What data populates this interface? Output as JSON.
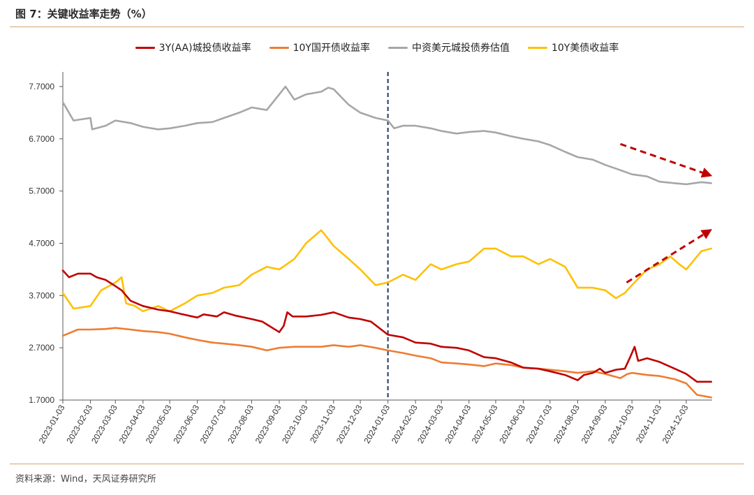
{
  "figure": {
    "title": "图 7：关键收益率走势（%）",
    "source": "资料来源：Wind，天风证券研究所"
  },
  "chart_data": {
    "type": "line",
    "title": "关键收益率走势（%）",
    "xlabel": "",
    "ylabel": "",
    "ylim": [
      1.7,
      7.98
    ],
    "y_ticks": [
      "7.7000",
      "6.7000",
      "5.7000",
      "4.7000",
      "3.7000",
      "2.7000",
      "1.7000"
    ],
    "x_ticks": [
      "2023-01-03",
      "2023-02-03",
      "2023-03-03",
      "2023-04-03",
      "2023-05-03",
      "2023-06-03",
      "2023-07-03",
      "2023-08-03",
      "2023-09-03",
      "2023-10-03",
      "2023-11-03",
      "2023-12-03",
      "2024-01-03",
      "2024-02-03",
      "2024-03-03",
      "2024-04-03",
      "2024-05-03",
      "2024-06-03",
      "2024-07-03",
      "2024-08-03",
      "2024-09-03",
      "2024-10-03",
      "2024-11-03",
      "2024-12-03"
    ],
    "vline_at": "2024-01-03",
    "annotations": [
      {
        "label": "down-trend-arrow",
        "from": [
          "2024-09-20",
          6.6
        ],
        "to": [
          "2024-12-30",
          6.0
        ]
      },
      {
        "label": "up-trend-arrow",
        "from": [
          "2024-09-27",
          3.95
        ],
        "to": [
          "2024-12-30",
          4.95
        ]
      }
    ],
    "series": [
      {
        "name": "3Y(AA)城投债收益率",
        "color": "#c00000",
        "points": [
          [
            "2023-01-03",
            4.18
          ],
          [
            "2023-01-10",
            4.05
          ],
          [
            "2023-01-20",
            4.12
          ],
          [
            "2023-02-03",
            4.12
          ],
          [
            "2023-02-10",
            4.05
          ],
          [
            "2023-02-20",
            4.0
          ],
          [
            "2023-03-03",
            3.88
          ],
          [
            "2023-03-10",
            3.8
          ],
          [
            "2023-03-20",
            3.6
          ],
          [
            "2023-04-03",
            3.5
          ],
          [
            "2023-04-20",
            3.43
          ],
          [
            "2023-05-03",
            3.4
          ],
          [
            "2023-05-15",
            3.35
          ],
          [
            "2023-06-03",
            3.28
          ],
          [
            "2023-06-10",
            3.34
          ],
          [
            "2023-06-25",
            3.3
          ],
          [
            "2023-07-03",
            3.38
          ],
          [
            "2023-07-15",
            3.32
          ],
          [
            "2023-08-03",
            3.25
          ],
          [
            "2023-08-15",
            3.2
          ],
          [
            "2023-09-03",
            3.0
          ],
          [
            "2023-09-08",
            3.12
          ],
          [
            "2023-09-12",
            3.38
          ],
          [
            "2023-09-18",
            3.3
          ],
          [
            "2023-10-03",
            3.3
          ],
          [
            "2023-10-20",
            3.33
          ],
          [
            "2023-11-03",
            3.38
          ],
          [
            "2023-11-20",
            3.28
          ],
          [
            "2023-12-03",
            3.25
          ],
          [
            "2023-12-15",
            3.2
          ],
          [
            "2024-01-03",
            2.95
          ],
          [
            "2024-01-20",
            2.9
          ],
          [
            "2024-02-03",
            2.8
          ],
          [
            "2024-02-20",
            2.78
          ],
          [
            "2024-03-03",
            2.72
          ],
          [
            "2024-03-20",
            2.7
          ],
          [
            "2024-04-03",
            2.65
          ],
          [
            "2024-04-20",
            2.52
          ],
          [
            "2024-05-03",
            2.5
          ],
          [
            "2024-05-20",
            2.42
          ],
          [
            "2024-06-03",
            2.32
          ],
          [
            "2024-06-20",
            2.3
          ],
          [
            "2024-07-03",
            2.25
          ],
          [
            "2024-07-20",
            2.18
          ],
          [
            "2024-08-03",
            2.08
          ],
          [
            "2024-08-10",
            2.18
          ],
          [
            "2024-08-20",
            2.22
          ],
          [
            "2024-08-28",
            2.3
          ],
          [
            "2024-09-03",
            2.22
          ],
          [
            "2024-09-15",
            2.28
          ],
          [
            "2024-09-25",
            2.3
          ],
          [
            "2024-10-01",
            2.52
          ],
          [
            "2024-10-06",
            2.72
          ],
          [
            "2024-10-10",
            2.45
          ],
          [
            "2024-10-20",
            2.5
          ],
          [
            "2024-11-03",
            2.43
          ],
          [
            "2024-11-20",
            2.3
          ],
          [
            "2024-12-03",
            2.2
          ],
          [
            "2024-12-15",
            2.05
          ],
          [
            "2024-12-31",
            2.05
          ]
        ]
      },
      {
        "name": "10Y国开债收益率",
        "color": "#ed7d31",
        "points": [
          [
            "2023-01-03",
            2.93
          ],
          [
            "2023-01-20",
            3.05
          ],
          [
            "2023-02-03",
            3.05
          ],
          [
            "2023-02-20",
            3.06
          ],
          [
            "2023-03-03",
            3.08
          ],
          [
            "2023-03-20",
            3.05
          ],
          [
            "2023-04-03",
            3.02
          ],
          [
            "2023-04-20",
            3.0
          ],
          [
            "2023-05-03",
            2.97
          ],
          [
            "2023-05-20",
            2.9
          ],
          [
            "2023-06-03",
            2.85
          ],
          [
            "2023-06-20",
            2.8
          ],
          [
            "2023-07-03",
            2.78
          ],
          [
            "2023-07-20",
            2.75
          ],
          [
            "2023-08-03",
            2.72
          ],
          [
            "2023-08-20",
            2.65
          ],
          [
            "2023-09-03",
            2.7
          ],
          [
            "2023-09-20",
            2.72
          ],
          [
            "2023-10-03",
            2.72
          ],
          [
            "2023-10-20",
            2.72
          ],
          [
            "2023-11-03",
            2.75
          ],
          [
            "2023-11-20",
            2.72
          ],
          [
            "2023-12-03",
            2.75
          ],
          [
            "2023-12-20",
            2.7
          ],
          [
            "2024-01-03",
            2.65
          ],
          [
            "2024-01-20",
            2.6
          ],
          [
            "2024-02-03",
            2.55
          ],
          [
            "2024-02-20",
            2.5
          ],
          [
            "2024-03-03",
            2.42
          ],
          [
            "2024-03-20",
            2.4
          ],
          [
            "2024-04-03",
            2.38
          ],
          [
            "2024-04-20",
            2.35
          ],
          [
            "2024-05-03",
            2.4
          ],
          [
            "2024-05-20",
            2.37
          ],
          [
            "2024-06-03",
            2.32
          ],
          [
            "2024-06-20",
            2.3
          ],
          [
            "2024-07-03",
            2.28
          ],
          [
            "2024-07-20",
            2.25
          ],
          [
            "2024-08-03",
            2.22
          ],
          [
            "2024-08-20",
            2.25
          ],
          [
            "2024-09-03",
            2.2
          ],
          [
            "2024-09-20",
            2.12
          ],
          [
            "2024-09-28",
            2.2
          ],
          [
            "2024-10-03",
            2.22
          ],
          [
            "2024-10-20",
            2.18
          ],
          [
            "2024-11-03",
            2.16
          ],
          [
            "2024-11-20",
            2.1
          ],
          [
            "2024-12-03",
            2.02
          ],
          [
            "2024-12-15",
            1.8
          ],
          [
            "2024-12-31",
            1.75
          ]
        ]
      },
      {
        "name": "中资美元城投债券估值",
        "color": "#a6a6a6",
        "points": [
          [
            "2023-01-03",
            7.4
          ],
          [
            "2023-01-15",
            7.05
          ],
          [
            "2023-02-03",
            7.1
          ],
          [
            "2023-02-05",
            6.88
          ],
          [
            "2023-02-20",
            6.95
          ],
          [
            "2023-03-03",
            7.05
          ],
          [
            "2023-03-20",
            7.0
          ],
          [
            "2023-04-03",
            6.93
          ],
          [
            "2023-04-20",
            6.88
          ],
          [
            "2023-05-03",
            6.9
          ],
          [
            "2023-05-20",
            6.95
          ],
          [
            "2023-06-03",
            7.0
          ],
          [
            "2023-06-20",
            7.02
          ],
          [
            "2023-07-03",
            7.1
          ],
          [
            "2023-07-20",
            7.2
          ],
          [
            "2023-08-03",
            7.3
          ],
          [
            "2023-08-20",
            7.25
          ],
          [
            "2023-09-03",
            7.55
          ],
          [
            "2023-09-10",
            7.7
          ],
          [
            "2023-09-20",
            7.45
          ],
          [
            "2023-10-03",
            7.55
          ],
          [
            "2023-10-20",
            7.6
          ],
          [
            "2023-10-28",
            7.68
          ],
          [
            "2023-11-03",
            7.65
          ],
          [
            "2023-11-20",
            7.35
          ],
          [
            "2023-12-03",
            7.2
          ],
          [
            "2023-12-20",
            7.1
          ],
          [
            "2024-01-03",
            7.05
          ],
          [
            "2024-01-10",
            6.9
          ],
          [
            "2024-01-20",
            6.95
          ],
          [
            "2024-02-03",
            6.95
          ],
          [
            "2024-02-20",
            6.9
          ],
          [
            "2024-03-03",
            6.85
          ],
          [
            "2024-03-20",
            6.8
          ],
          [
            "2024-04-03",
            6.83
          ],
          [
            "2024-04-20",
            6.85
          ],
          [
            "2024-05-03",
            6.82
          ],
          [
            "2024-05-20",
            6.75
          ],
          [
            "2024-06-03",
            6.7
          ],
          [
            "2024-06-20",
            6.65
          ],
          [
            "2024-07-03",
            6.58
          ],
          [
            "2024-07-20",
            6.45
          ],
          [
            "2024-08-03",
            6.35
          ],
          [
            "2024-08-20",
            6.3
          ],
          [
            "2024-09-03",
            6.2
          ],
          [
            "2024-09-20",
            6.1
          ],
          [
            "2024-10-03",
            6.02
          ],
          [
            "2024-10-20",
            5.98
          ],
          [
            "2024-11-03",
            5.88
          ],
          [
            "2024-11-20",
            5.85
          ],
          [
            "2024-12-03",
            5.83
          ],
          [
            "2024-12-20",
            5.87
          ],
          [
            "2024-12-31",
            5.85
          ]
        ]
      },
      {
        "name": "10Y美债收益率",
        "color": "#ffc000",
        "points": [
          [
            "2023-01-03",
            3.75
          ],
          [
            "2023-01-15",
            3.45
          ],
          [
            "2023-02-03",
            3.5
          ],
          [
            "2023-02-15",
            3.8
          ],
          [
            "2023-03-03",
            3.95
          ],
          [
            "2023-03-10",
            4.05
          ],
          [
            "2023-03-15",
            3.55
          ],
          [
            "2023-03-25",
            3.5
          ],
          [
            "2023-04-03",
            3.4
          ],
          [
            "2023-04-20",
            3.5
          ],
          [
            "2023-05-03",
            3.4
          ],
          [
            "2023-05-20",
            3.55
          ],
          [
            "2023-06-03",
            3.7
          ],
          [
            "2023-06-20",
            3.75
          ],
          [
            "2023-07-03",
            3.85
          ],
          [
            "2023-07-20",
            3.9
          ],
          [
            "2023-08-03",
            4.1
          ],
          [
            "2023-08-20",
            4.25
          ],
          [
            "2023-09-03",
            4.2
          ],
          [
            "2023-09-20",
            4.4
          ],
          [
            "2023-10-03",
            4.7
          ],
          [
            "2023-10-20",
            4.95
          ],
          [
            "2023-10-25",
            4.85
          ],
          [
            "2023-11-03",
            4.65
          ],
          [
            "2023-11-20",
            4.4
          ],
          [
            "2023-12-03",
            4.2
          ],
          [
            "2023-12-20",
            3.9
          ],
          [
            "2024-01-03",
            3.95
          ],
          [
            "2024-01-20",
            4.1
          ],
          [
            "2024-02-03",
            4.0
          ],
          [
            "2024-02-20",
            4.3
          ],
          [
            "2024-03-03",
            4.2
          ],
          [
            "2024-03-20",
            4.3
          ],
          [
            "2024-04-03",
            4.35
          ],
          [
            "2024-04-20",
            4.6
          ],
          [
            "2024-05-03",
            4.6
          ],
          [
            "2024-05-20",
            4.45
          ],
          [
            "2024-06-03",
            4.45
          ],
          [
            "2024-06-20",
            4.3
          ],
          [
            "2024-07-03",
            4.4
          ],
          [
            "2024-07-20",
            4.25
          ],
          [
            "2024-08-03",
            3.85
          ],
          [
            "2024-08-20",
            3.85
          ],
          [
            "2024-09-03",
            3.8
          ],
          [
            "2024-09-15",
            3.65
          ],
          [
            "2024-09-25",
            3.75
          ],
          [
            "2024-10-03",
            3.9
          ],
          [
            "2024-10-20",
            4.2
          ],
          [
            "2024-11-03",
            4.3
          ],
          [
            "2024-11-15",
            4.45
          ],
          [
            "2024-11-25",
            4.3
          ],
          [
            "2024-12-03",
            4.2
          ],
          [
            "2024-12-20",
            4.55
          ],
          [
            "2024-12-31",
            4.6
          ]
        ]
      }
    ]
  }
}
